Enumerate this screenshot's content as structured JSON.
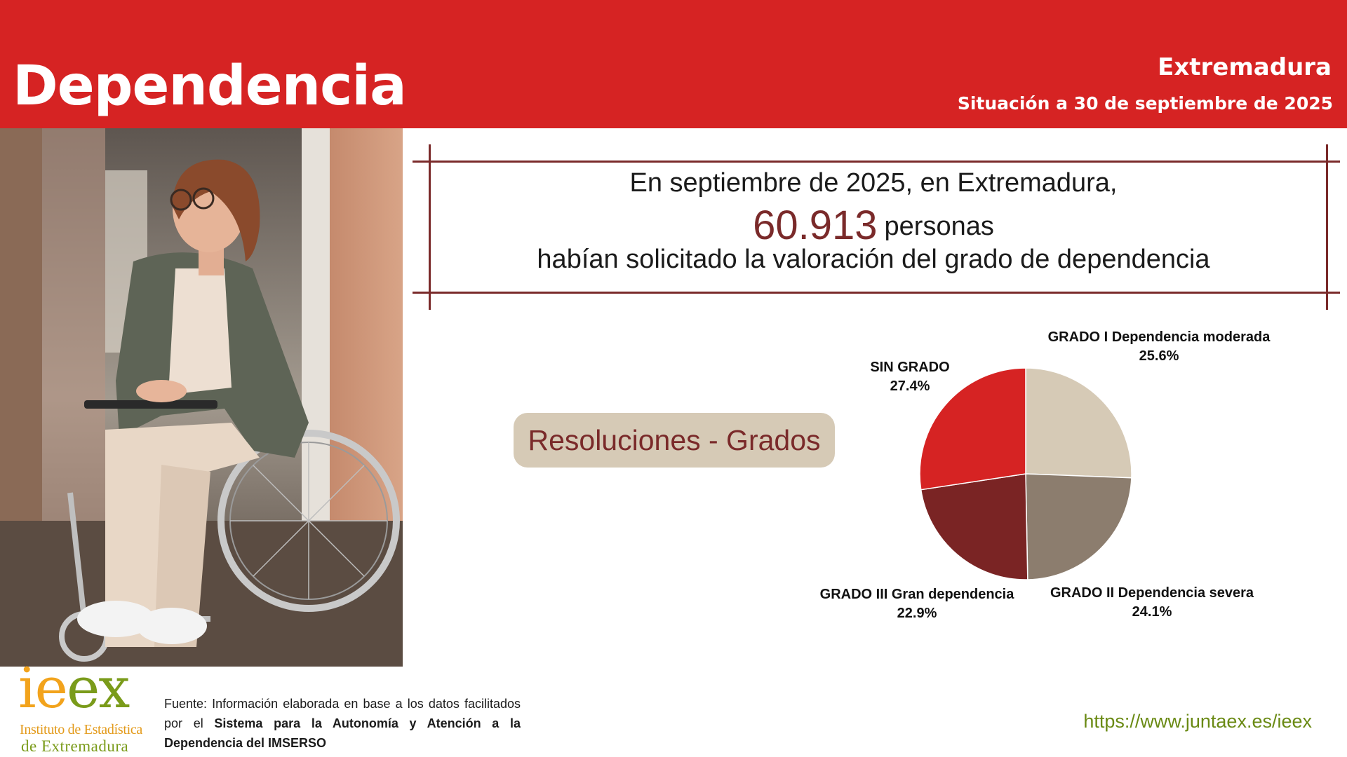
{
  "header": {
    "title": "Dependencia",
    "region": "Extremadura",
    "date_label": "Situación a 30 de septiembre de 2025"
  },
  "highlight": {
    "line1": "En septiembre de 2025, en Extremadura,",
    "number": "60.913",
    "number_suffix": "personas",
    "line3": "habían solicitado la valoración del grado de dependencia"
  },
  "section_label": "Resoluciones - Grados",
  "chart_data": {
    "type": "pie",
    "title": "",
    "slices": [
      {
        "label": "GRADO I Dependencia moderada",
        "value": 25.6,
        "value_label": "25.6%",
        "color": "#d6cab6"
      },
      {
        "label": "GRADO II Dependencia severa",
        "value": 24.1,
        "value_label": "24.1%",
        "color": "#8c7d6e"
      },
      {
        "label": "GRADO III Gran dependencia",
        "value": 22.9,
        "value_label": "22.9%",
        "color": "#7a2424"
      },
      {
        "label": "SIN GRADO",
        "value": 27.4,
        "value_label": "27.4%",
        "color": "#d62323"
      }
    ],
    "start": "top",
    "direction": "clockwise"
  },
  "footer": {
    "logo_word": [
      "ie",
      "ex"
    ],
    "logo_line1": "Instituto de Estadística",
    "logo_line2": "de Extremadura",
    "source_prefix": "Fuente: Información elaborada en base a los datos facilitados por el ",
    "source_bold": "Sistema para la Autonomía y Atención a la Dependencia del IMSERSO",
    "url": "https://www.juntaex.es/ieex"
  },
  "colors": {
    "banner": "#d62323",
    "accent_dark": "#7a2a2a",
    "pill": "#d6cab6",
    "logo_orange": "#f2a31c",
    "logo_green": "#7a9b1a"
  }
}
